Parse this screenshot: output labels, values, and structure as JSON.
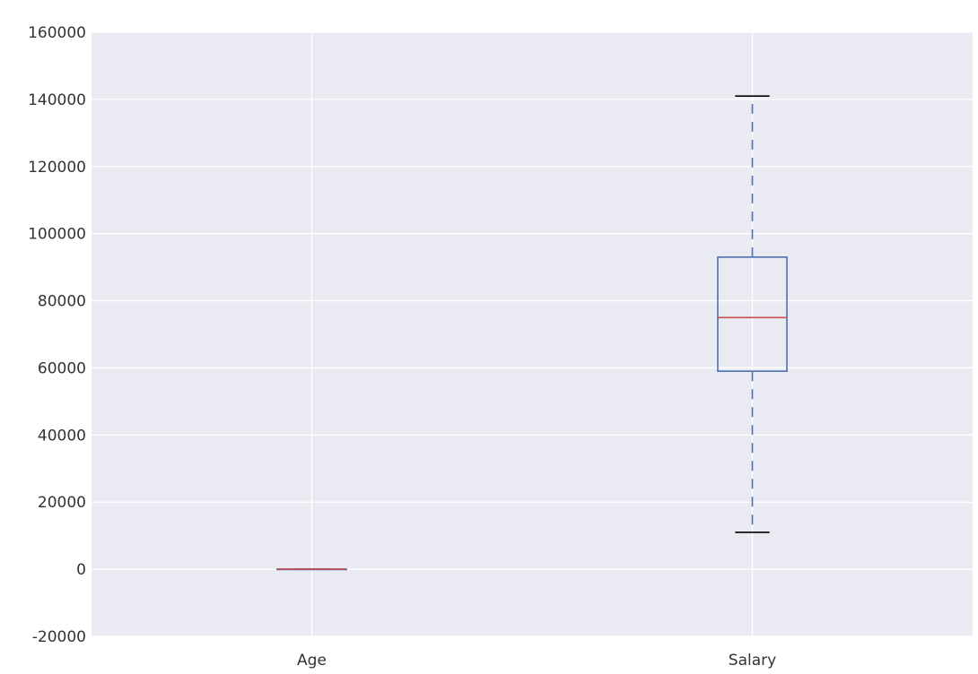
{
  "chart_data": {
    "type": "box",
    "title": "",
    "xlabel": "",
    "ylabel": "",
    "ylim": [
      -20000,
      160000
    ],
    "y_ticks": [
      "-20000",
      "0",
      "20000",
      "40000",
      "60000",
      "80000",
      "100000",
      "120000",
      "140000",
      "160000"
    ],
    "y_tick_values": [
      -20000,
      0,
      20000,
      40000,
      60000,
      80000,
      100000,
      120000,
      140000,
      160000
    ],
    "categories": [
      "Age",
      "Salary"
    ],
    "grid": true,
    "background": "#EAEAF2",
    "colors": {
      "box": "#4C72B0",
      "median": "#C44E52",
      "cap": "#000000",
      "grid": "#FFFFFF"
    },
    "boxes": [
      {
        "name": "Age",
        "whisker_low": 30,
        "q1": 35,
        "median": 38,
        "q3": 42,
        "whisker_high": 50
      },
      {
        "name": "Salary",
        "whisker_low": 11000,
        "q1": 59000,
        "median": 75000,
        "q3": 93000,
        "whisker_high": 141000
      }
    ]
  }
}
